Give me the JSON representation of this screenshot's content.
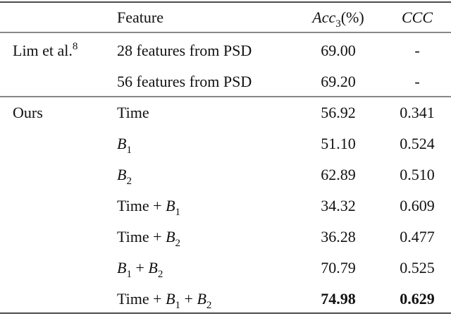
{
  "table": {
    "header": {
      "feature": [
        {
          "t": "Feature"
        }
      ],
      "acc": [
        {
          "t": "Acc",
          "i": true,
          "sub": "3"
        },
        {
          "t": "(%)"
        }
      ],
      "ccc": [
        {
          "t": "CCC",
          "i": true
        }
      ]
    },
    "groups": [
      {
        "name": [
          {
            "t": "Lim et al.",
            "sup": "8"
          }
        ],
        "rows": [
          {
            "feature": [
              {
                "t": "28 features from PSD"
              }
            ],
            "acc": "69.00",
            "ccc": "-"
          },
          {
            "feature": [
              {
                "t": "56 features from PSD"
              }
            ],
            "acc": "69.20",
            "ccc": "-"
          }
        ]
      },
      {
        "name": [
          {
            "t": "Ours"
          }
        ],
        "rows": [
          {
            "feature": [
              {
                "t": "Time"
              }
            ],
            "acc": "56.92",
            "ccc": "0.341"
          },
          {
            "feature": [
              {
                "t": "B",
                "i": true,
                "sub": "1"
              }
            ],
            "acc": "51.10",
            "ccc": "0.524"
          },
          {
            "feature": [
              {
                "t": "B",
                "i": true,
                "sub": "2"
              }
            ],
            "acc": "62.89",
            "ccc": "0.510"
          },
          {
            "feature": [
              {
                "t": "Time + "
              },
              {
                "t": "B",
                "i": true,
                "sub": "1"
              }
            ],
            "acc": "34.32",
            "ccc": "0.609"
          },
          {
            "feature": [
              {
                "t": "Time + "
              },
              {
                "t": "B",
                "i": true,
                "sub": "2"
              }
            ],
            "acc": "36.28",
            "ccc": "0.477"
          },
          {
            "feature": [
              {
                "t": "B",
                "i": true,
                "sub": "1"
              },
              {
                "t": " + "
              },
              {
                "t": "B",
                "i": true,
                "sub": "2"
              }
            ],
            "acc": "70.79",
            "ccc": "0.525"
          },
          {
            "feature": [
              {
                "t": "Time + "
              },
              {
                "t": "B",
                "i": true,
                "sub": "1"
              },
              {
                "t": " + "
              },
              {
                "t": "B",
                "i": true,
                "sub": "2"
              }
            ],
            "acc": "74.98",
            "ccc": "0.629",
            "bold": true
          }
        ]
      }
    ]
  }
}
